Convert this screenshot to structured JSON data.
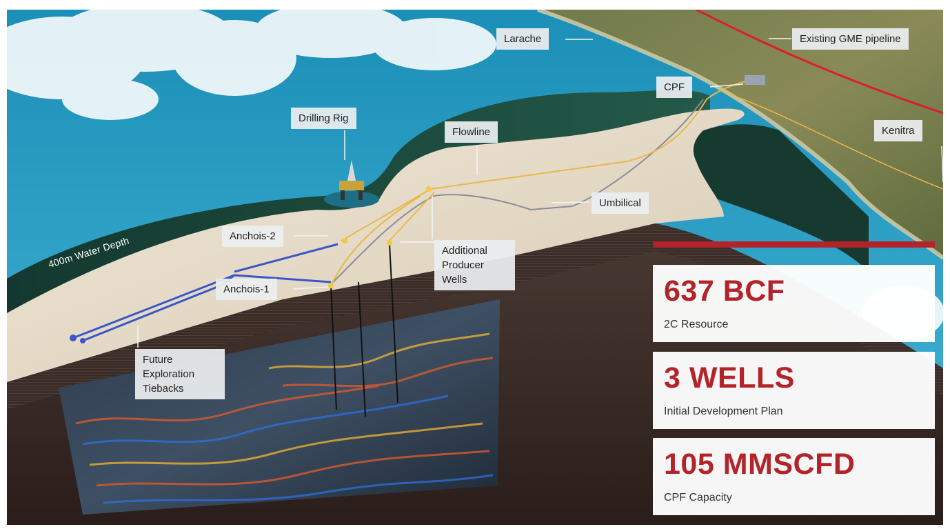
{
  "scene": {
    "water_depth_label": "400m Water Depth",
    "colors": {
      "ocean": "#2e9fc4",
      "seabed_sand": "#e4d8c3",
      "shelf_dark": "#1b4a3d",
      "flowline": "#e8b84a",
      "tieback": "#3b57c7",
      "umbilical": "#8c8c9a",
      "pipeline": "#d8202a",
      "accent": "#b3242a"
    }
  },
  "labels": {
    "larache": "Larache",
    "existing_pipeline": "Existing GME pipeline",
    "cpf": "CPF",
    "kenitra": "Kenitra",
    "drilling_rig": "Drilling Rig",
    "flowline": "Flowline",
    "umbilical": "Umbilical",
    "anchois_2": "Anchois-2",
    "anchois_1": "Anchois-1",
    "additional_producer_wells": "Additional Producer Wells",
    "future_exploration_tiebacks": "Future Exploration Tiebacks"
  },
  "stats": [
    {
      "value": "637 BCF",
      "caption": "2C Resource"
    },
    {
      "value": "3 WELLS",
      "caption": "Initial Development Plan"
    },
    {
      "value": "105 MMSCFD",
      "caption": "CPF Capacity"
    }
  ]
}
